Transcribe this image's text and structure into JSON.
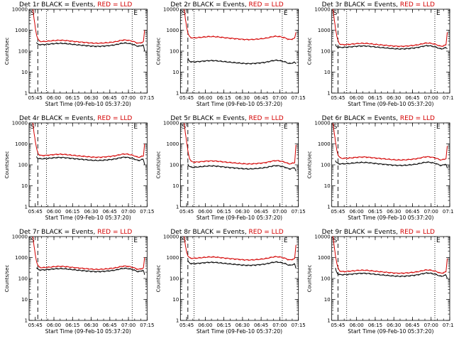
{
  "chart_data": [
    {
      "type": "line",
      "title_det": "Det 1r",
      "title_rest": " BLACK = Events, ",
      "title_red": "RED = LLD",
      "ylabel": "Counts/sec",
      "xlabel": "Start Time (09-Feb-10 05:37:20)",
      "yscale": "log",
      "ylim": [
        1,
        10000
      ],
      "xlim": [
        "05:40",
        "07:15"
      ],
      "xticks": [
        "05:45",
        "06:00",
        "06:15",
        "06:30",
        "06:45",
        "07:00",
        "07:15"
      ],
      "yticks": [
        "1",
        "10",
        "100",
        "1000",
        "10000"
      ],
      "markers": {
        "left": "S",
        "right": "E"
      },
      "vlines": {
        "dashed": "05:47",
        "dotted": [
          "05:54",
          "07:03"
        ]
      },
      "series": [
        {
          "name": "LLD",
          "color": "#d40000",
          "start": "05:43",
          "end": "07:13",
          "base": 280,
          "spike": 10000,
          "final": 1000
        },
        {
          "name": "Events",
          "color": "#000000",
          "start": "05:46",
          "end": "07:13",
          "base": 200,
          "spike": 250,
          "final": 100
        }
      ]
    },
    {
      "type": "line",
      "title_det": "Det 2r",
      "title_rest": " BLACK = Events, ",
      "title_red": "RED = LLD",
      "ylabel": "Counts/sec",
      "xlabel": "Start Time (09-Feb-10 05:37:20)",
      "yscale": "log",
      "ylim": [
        1,
        10000
      ],
      "xlim": [
        "05:40",
        "07:15"
      ],
      "xticks": [
        "05:45",
        "06:00",
        "06:15",
        "06:30",
        "06:45",
        "07:00",
        "07:15"
      ],
      "yticks": [
        "1",
        "10",
        "100",
        "1000",
        "10000"
      ],
      "markers": {
        "left": "S",
        "right": "E"
      },
      "vlines": {
        "dashed": "05:46",
        "dotted": [
          "05:51",
          "07:02"
        ]
      },
      "series": [
        {
          "name": "LLD",
          "color": "#d40000",
          "start": "05:43",
          "end": "07:13",
          "base": 420,
          "spike": 10000,
          "final": 800
        },
        {
          "name": "Events",
          "color": "#000000",
          "start": "05:46",
          "end": "07:13",
          "base": 30,
          "spike": 45,
          "final": 25
        }
      ]
    },
    {
      "type": "line",
      "title_det": "Det 3r",
      "title_rest": " BLACK = Events, ",
      "title_red": "RED = LLD",
      "ylabel": "Counts/sec",
      "xlabel": "Start Time (09-Feb-10 05:37:20)",
      "yscale": "log",
      "ylim": [
        1,
        10000
      ],
      "xlim": [
        "05:40",
        "07:15"
      ],
      "xticks": [
        "05:45",
        "06:00",
        "06:15",
        "06:30",
        "06:45",
        "07:00",
        "07:15"
      ],
      "yticks": [
        "1",
        "10",
        "100",
        "1000",
        "10000"
      ],
      "markers": {
        "left": "S",
        "right": "E"
      },
      "vlines": {
        "dashed": "05:45",
        "dotted": [
          "05:52",
          "07:03"
        ]
      },
      "series": [
        {
          "name": "LLD",
          "color": "#d40000",
          "start": "05:41",
          "end": "07:13",
          "base": 200,
          "spike": 10000,
          "final": 800
        },
        {
          "name": "Events",
          "color": "#000000",
          "start": "05:43",
          "end": "07:13",
          "base": 150,
          "spike": 200,
          "final": 130
        }
      ]
    },
    {
      "type": "line",
      "title_det": "Det 4r",
      "title_rest": " BLACK = Events, ",
      "title_red": "RED = LLD",
      "ylabel": "Counts/sec",
      "xlabel": "Start Time (09-Feb-10 05:37:20)",
      "yscale": "log",
      "ylim": [
        1,
        10000
      ],
      "xlim": [
        "05:40",
        "07:15"
      ],
      "xticks": [
        "05:45",
        "06:00",
        "06:15",
        "06:30",
        "06:45",
        "07:00",
        "07:15"
      ],
      "yticks": [
        "1",
        "10",
        "100",
        "1000",
        "10000"
      ],
      "markers": {
        "left": "S",
        "right": "E"
      },
      "vlines": {
        "dashed": "05:47",
        "dotted": [
          "05:54",
          "07:03"
        ]
      },
      "series": [
        {
          "name": "LLD",
          "color": "#d40000",
          "start": "05:43",
          "end": "07:13",
          "base": 270,
          "spike": 10000,
          "final": 1000
        },
        {
          "name": "Events",
          "color": "#000000",
          "start": "05:46",
          "end": "07:13",
          "base": 190,
          "spike": 240,
          "final": 100
        }
      ]
    },
    {
      "type": "line",
      "title_det": "Det 5r",
      "title_rest": " BLACK = Events, ",
      "title_red": "RED = LLD",
      "ylabel": "Counts/sec",
      "xlabel": "Start Time (09-Feb-10 05:37:20)",
      "yscale": "log",
      "ylim": [
        1,
        10000
      ],
      "xlim": [
        "05:40",
        "07:15"
      ],
      "xticks": [
        "05:45",
        "06:00",
        "06:15",
        "06:30",
        "06:45",
        "07:00",
        "07:15"
      ],
      "yticks": [
        "1",
        "10",
        "100",
        "1000",
        "10000"
      ],
      "markers": {
        "left": "S",
        "right": "E"
      },
      "vlines": {
        "dashed": "05:46",
        "dotted": [
          "05:51",
          "07:02"
        ]
      },
      "series": [
        {
          "name": "LLD",
          "color": "#d40000",
          "start": "05:43",
          "end": "07:13",
          "base": 130,
          "spike": 10000,
          "final": 900
        },
        {
          "name": "Events",
          "color": "#000000",
          "start": "05:46",
          "end": "07:13",
          "base": 75,
          "spike": 110,
          "final": 50
        }
      ]
    },
    {
      "type": "line",
      "title_det": "Det 6r",
      "title_rest": " BLACK = Events, ",
      "title_red": "RED = LLD",
      "ylabel": "Counts/sec",
      "xlabel": "Start Time (09-Feb-10 05:37:20)",
      "yscale": "log",
      "ylim": [
        1,
        10000
      ],
      "xlim": [
        "05:40",
        "07:15"
      ],
      "xticks": [
        "05:45",
        "06:00",
        "06:15",
        "06:30",
        "06:45",
        "07:00",
        "07:15"
      ],
      "yticks": [
        "1",
        "10",
        "100",
        "1000",
        "10000"
      ],
      "markers": {
        "left": "S",
        "right": "E"
      },
      "vlines": {
        "dashed": "05:45",
        "dotted": [
          "05:52",
          "07:03"
        ]
      },
      "series": [
        {
          "name": "LLD",
          "color": "#d40000",
          "start": "05:41",
          "end": "07:13",
          "base": 200,
          "spike": 10000,
          "final": 800
        },
        {
          "name": "Events",
          "color": "#000000",
          "start": "05:43",
          "end": "07:13",
          "base": 110,
          "spike": 160,
          "final": 70
        }
      ]
    },
    {
      "type": "line",
      "title_det": "Det 7r",
      "title_rest": " BLACK = Events, ",
      "title_red": "RED = LLD",
      "ylabel": "Counts/sec",
      "xlabel": "Start Time (09-Feb-10 05:37:20)",
      "yscale": "log",
      "ylim": [
        1,
        10000
      ],
      "xlim": [
        "05:40",
        "07:15"
      ],
      "xticks": [
        "05:45",
        "06:00",
        "06:15",
        "06:30",
        "06:45",
        "07:00",
        "07:15"
      ],
      "yticks": [
        "1",
        "10",
        "100",
        "1000",
        "10000"
      ],
      "markers": {
        "left": "S",
        "right": "E"
      },
      "vlines": {
        "dashed": "05:47",
        "dotted": [
          "05:54",
          "07:03"
        ]
      },
      "series": [
        {
          "name": "LLD",
          "color": "#d40000",
          "start": "05:43",
          "end": "07:13",
          "base": 320,
          "spike": 10000,
          "final": 1000
        },
        {
          "name": "Events",
          "color": "#000000",
          "start": "05:46",
          "end": "07:13",
          "base": 250,
          "spike": 320,
          "final": 150
        }
      ]
    },
    {
      "type": "line",
      "title_det": "Det 8r",
      "title_rest": " BLACK = Events, ",
      "title_red": "RED = LLD",
      "ylabel": "Counts/sec",
      "xlabel": "Start Time (09-Feb-10 05:37:20)",
      "yscale": "log",
      "ylim": [
        1,
        10000
      ],
      "xlim": [
        "05:40",
        "07:15"
      ],
      "xticks": [
        "05:45",
        "06:00",
        "06:15",
        "06:30",
        "06:45",
        "07:00",
        "07:15"
      ],
      "yticks": [
        "1",
        "10",
        "100",
        "1000",
        "10000"
      ],
      "markers": {
        "left": "S",
        "right": "E"
      },
      "vlines": {
        "dashed": "05:46",
        "dotted": [
          "05:51",
          "07:02"
        ]
      },
      "series": [
        {
          "name": "LLD",
          "color": "#d40000",
          "start": "05:43",
          "end": "07:13",
          "base": 900,
          "spike": 10000,
          "final": 4000
        },
        {
          "name": "Events",
          "color": "#000000",
          "start": "05:46",
          "end": "07:13",
          "base": 500,
          "spike": 700,
          "final": 300
        }
      ]
    },
    {
      "type": "line",
      "title_det": "Det 9r",
      "title_rest": " BLACK = Events, ",
      "title_red": "RED = LLD",
      "ylabel": "Counts/sec",
      "xlabel": "Start Time (09-Feb-10 05:37:20)",
      "yscale": "log",
      "ylim": [
        1,
        10000
      ],
      "xlim": [
        "05:40",
        "07:15"
      ],
      "xticks": [
        "05:45",
        "06:00",
        "06:15",
        "06:30",
        "06:45",
        "07:00",
        "07:15"
      ],
      "yticks": [
        "1",
        "10",
        "100",
        "1000",
        "10000"
      ],
      "markers": {
        "left": "S",
        "right": "E"
      },
      "vlines": {
        "dashed": "05:45",
        "dotted": [
          "05:52",
          "07:03"
        ]
      },
      "series": [
        {
          "name": "LLD",
          "color": "#d40000",
          "start": "05:41",
          "end": "07:13",
          "base": 210,
          "spike": 10000,
          "final": 900
        },
        {
          "name": "Events",
          "color": "#000000",
          "start": "05:43",
          "end": "07:13",
          "base": 150,
          "spike": 300,
          "final": 100
        }
      ]
    }
  ]
}
